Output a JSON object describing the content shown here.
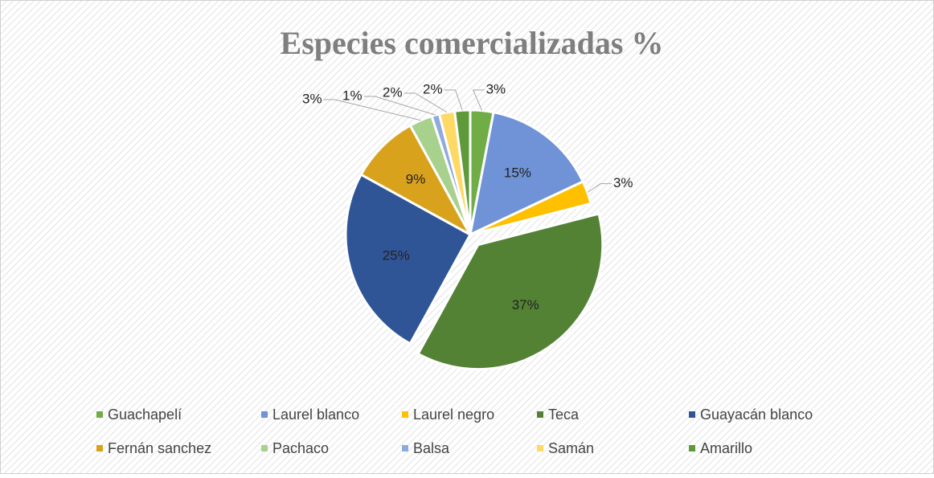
{
  "chart_data": {
    "type": "pie",
    "title": "Especies comercializadas %",
    "categories": [
      "Guachapelí",
      "Laurel blanco",
      "Laurel negro",
      "Teca",
      "Guayacán blanco",
      "Fernán sanchez",
      "Pachaco",
      "Balsa",
      "Samán",
      "Amarillo"
    ],
    "values": [
      3,
      15,
      3,
      37,
      25,
      9,
      3,
      1,
      2,
      2
    ],
    "value_labels": [
      "3%",
      "15%",
      "3%",
      "37%",
      "25%",
      "9%",
      "3%",
      "1%",
      "2%",
      "2%"
    ],
    "colors": [
      "#70ad47",
      "#6f93d6",
      "#ffc000",
      "#548235",
      "#2f5597",
      "#d9a21c",
      "#a9d18e",
      "#8faadc",
      "#ffd966",
      "#5e9a3a"
    ],
    "exploded": [
      3
    ],
    "legend": "bottom"
  }
}
